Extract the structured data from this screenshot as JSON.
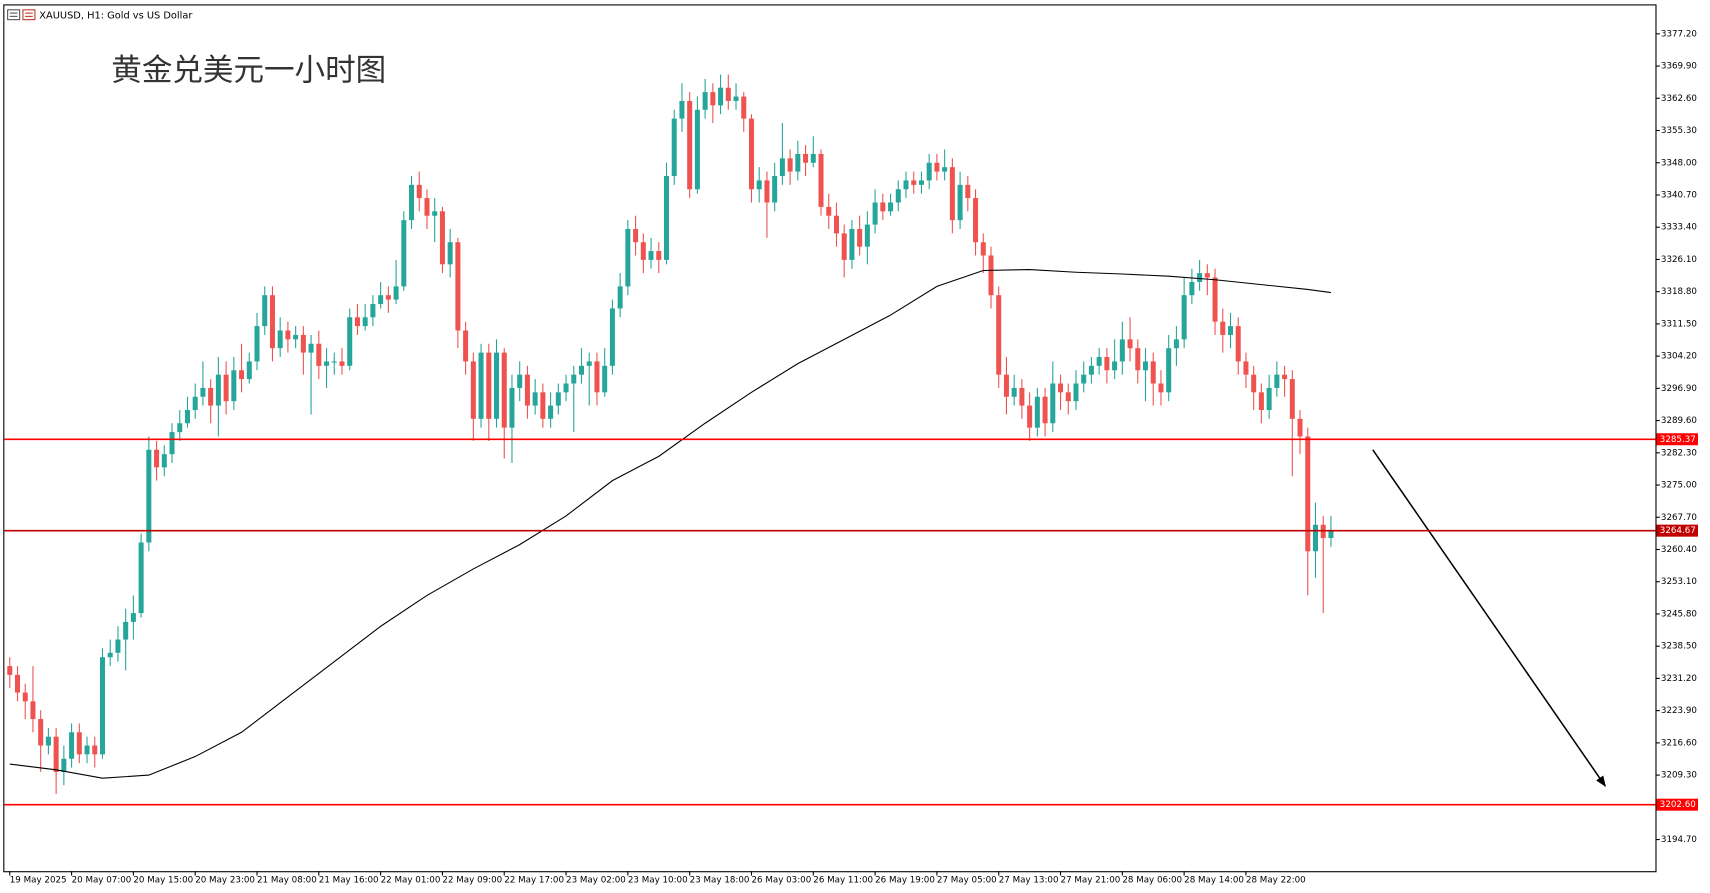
{
  "chart_data": {
    "type": "candlestick",
    "title": "XAUUSD, H1:  Gold vs US Dollar",
    "annotation": "黄金兑美元一小时图",
    "up_color": "#26a69a",
    "down_color": "#ef5350",
    "categories": [
      "19 May 2025",
      null,
      null,
      null,
      null,
      null,
      null,
      null,
      "20 May 07:00",
      null,
      null,
      null,
      null,
      null,
      null,
      null,
      "20 May 15:00",
      null,
      null,
      null,
      null,
      null,
      null,
      null,
      "20 May 23:00",
      null,
      null,
      null,
      null,
      null,
      null,
      null,
      "21 May 08:00",
      null,
      null,
      null,
      null,
      null,
      null,
      null,
      "21 May 16:00",
      null,
      null,
      null,
      null,
      null,
      null,
      null,
      "22 May 01:00",
      null,
      null,
      null,
      null,
      null,
      null,
      null,
      "22 May 09:00",
      null,
      null,
      null,
      null,
      null,
      null,
      null,
      "22 May 17:00",
      null,
      null,
      null,
      null,
      null,
      null,
      null,
      "23 May 02:00",
      null,
      null,
      null,
      null,
      null,
      null,
      null,
      "23 May 10:00",
      null,
      null,
      null,
      null,
      null,
      null,
      null,
      "23 May 18:00",
      null,
      null,
      null,
      null,
      null,
      null,
      null,
      "26 May 03:00",
      null,
      null,
      null,
      null,
      null,
      null,
      null,
      "26 May 11:00",
      null,
      null,
      null,
      null,
      null,
      null,
      null,
      "26 May 19:00",
      null,
      null,
      null,
      null,
      null,
      null,
      null,
      "27 May 05:00",
      null,
      null,
      null,
      null,
      null,
      null,
      null,
      "27 May 13:00",
      null,
      null,
      null,
      null,
      null,
      null,
      null,
      "27 May 21:00",
      null,
      null,
      null,
      null,
      null,
      null,
      null,
      "28 May 06:00",
      null,
      null,
      null,
      null,
      null,
      null,
      null,
      "28 May 14:00",
      null,
      null,
      null,
      null,
      null,
      null,
      null,
      "28 May 22:00",
      null,
      null,
      null,
      null,
      null,
      null,
      null,
      null,
      null,
      null,
      null
    ],
    "open": [
      3234,
      3232,
      3228,
      3226,
      3222,
      3216,
      3218,
      3210,
      3213,
      3219,
      3214,
      3216,
      3214,
      3236,
      3237,
      3240,
      3244,
      3246,
      3262,
      3283,
      3279,
      3282,
      3287,
      3289,
      3292,
      3295,
      3297,
      3293,
      3300,
      3294,
      3301,
      3299,
      3303,
      3311,
      3318,
      3306,
      3310,
      3308,
      3309,
      3305,
      3307,
      3302,
      3303,
      3303,
      3302,
      3313,
      3311,
      3313,
      3316,
      3318,
      3317,
      3320,
      3335,
      3343,
      3340,
      3336,
      3337,
      3325,
      3330,
      3310,
      3303,
      3290,
      3305,
      3290,
      3305,
      3288,
      3297,
      3300,
      3293,
      3296,
      3290,
      3293,
      3296,
      3298,
      3300,
      3302,
      3303,
      3296,
      3302,
      3315,
      3320,
      3333,
      3330,
      3326,
      3328,
      3326,
      3345,
      3358,
      3362,
      3342,
      3360,
      3364,
      3361,
      3365,
      3362,
      3363,
      3358,
      3342,
      3344,
      3339,
      3345,
      3349,
      3346,
      3350,
      3348,
      3350,
      3338,
      3336,
      3332,
      3326,
      3333,
      3329,
      3334,
      3339,
      3337,
      3339,
      3342,
      3344,
      3343,
      3344,
      3348,
      3346,
      3347,
      3335,
      3343,
      3340,
      3330,
      3327,
      3318,
      3300,
      3295,
      3297,
      3293,
      3288,
      3295,
      3289,
      3298,
      3296,
      3294,
      3298,
      3300,
      3302,
      3304,
      3301,
      3303,
      3308,
      3306,
      3301,
      3303,
      3298,
      3296,
      3306,
      3308,
      3318,
      3321,
      3323,
      3322,
      3312,
      3309,
      3311,
      3303,
      3300,
      3296,
      3292,
      3297,
      3300,
      3299,
      3290,
      3286,
      3260,
      3266,
      3263
    ],
    "high": [
      3236,
      3234,
      3230,
      3234,
      3224,
      3220,
      3220,
      3216,
      3221,
      3221,
      3218,
      3218,
      3238,
      3240,
      3243,
      3247,
      3250,
      3264,
      3286,
      3285,
      3284,
      3289,
      3292,
      3295,
      3298,
      3303,
      3299,
      3304,
      3303,
      3304,
      3307,
      3305,
      3314,
      3320,
      3320,
      3313,
      3312,
      3311,
      3311,
      3309,
      3310,
      3306,
      3305,
      3306,
      3315,
      3316,
      3316,
      3318,
      3321,
      3320,
      3326,
      3337,
      3345,
      3346,
      3342,
      3340,
      3338,
      3333,
      3331,
      3312,
      3305,
      3307,
      3307,
      3308,
      3306,
      3300,
      3303,
      3302,
      3299,
      3298,
      3296,
      3298,
      3300,
      3302,
      3306,
      3305,
      3305,
      3306,
      3317,
      3323,
      3335,
      3336,
      3332,
      3331,
      3330,
      3348,
      3360,
      3366,
      3364,
      3363,
      3367,
      3366,
      3368,
      3368,
      3366,
      3364,
      3359,
      3347,
      3346,
      3348,
      3357,
      3351,
      3353,
      3352,
      3354,
      3351,
      3341,
      3339,
      3334,
      3335,
      3336,
      3337,
      3342,
      3341,
      3341,
      3344,
      3346,
      3346,
      3346,
      3350,
      3350,
      3351,
      3349,
      3346,
      3345,
      3342,
      3332,
      3329,
      3320,
      3304,
      3300,
      3299,
      3296,
      3297,
      3297,
      3303,
      3300,
      3298,
      3301,
      3303,
      3304,
      3306,
      3306,
      3308,
      3312,
      3313,
      3308,
      3306,
      3305,
      3301,
      3309,
      3311,
      3322,
      3324,
      3326,
      3325,
      3324,
      3315,
      3314,
      3313,
      3305,
      3302,
      3298,
      3300,
      3303,
      3302,
      3301,
      3292,
      3288,
      3271,
      3268,
      3268
    ],
    "low": [
      3229,
      3226,
      3222,
      3219,
      3210,
      3214,
      3205,
      3207,
      3211,
      3212,
      3212,
      3211,
      3213,
      3234,
      3235,
      3233,
      3240,
      3245,
      3260,
      3276,
      3277,
      3280,
      3285,
      3288,
      3290,
      3293,
      3289,
      3286,
      3291,
      3292,
      3296,
      3298,
      3301,
      3309,
      3303,
      3304,
      3305,
      3306,
      3300,
      3291,
      3299,
      3297,
      3300,
      3300,
      3301,
      3309,
      3310,
      3311,
      3315,
      3314,
      3316,
      3319,
      3333,
      3337,
      3333,
      3330,
      3323,
      3322,
      3306,
      3300,
      3285,
      3288,
      3285,
      3288,
      3281,
      3280,
      3294,
      3290,
      3291,
      3288,
      3288,
      3291,
      3294,
      3287,
      3298,
      3293,
      3293,
      3295,
      3300,
      3313,
      3318,
      3327,
      3323,
      3324,
      3323,
      3325,
      3343,
      3355,
      3340,
      3341,
      3358,
      3357,
      3359,
      3360,
      3360,
      3355,
      3339,
      3339,
      3331,
      3337,
      3343,
      3343,
      3344,
      3345,
      3347,
      3336,
      3333,
      3329,
      3322,
      3324,
      3327,
      3325,
      3332,
      3335,
      3336,
      3337,
      3340,
      3341,
      3341,
      3342,
      3344,
      3344,
      3332,
      3333,
      3337,
      3327,
      3323,
      3315,
      3297,
      3291,
      3293,
      3290,
      3285,
      3286,
      3286,
      3287,
      3292,
      3291,
      3292,
      3296,
      3298,
      3300,
      3298,
      3299,
      3300,
      3303,
      3298,
      3294,
      3293,
      3293,
      3294,
      3302,
      3306,
      3316,
      3319,
      3318,
      3309,
      3305,
      3306,
      3300,
      3297,
      3292,
      3289,
      3290,
      3295,
      3295,
      3277,
      3282,
      3250,
      3254,
      3246,
      3261
    ],
    "close": [
      3232,
      3228,
      3226,
      3222,
      3216,
      3218,
      3210,
      3213,
      3219,
      3214,
      3216,
      3214,
      3236,
      3237,
      3240,
      3244,
      3246,
      3262,
      3283,
      3279,
      3282,
      3287,
      3289,
      3292,
      3295,
      3297,
      3293,
      3300,
      3294,
      3301,
      3299,
      3303,
      3311,
      3318,
      3306,
      3310,
      3308,
      3309,
      3305,
      3307,
      3302,
      3303,
      3303,
      3302,
      3313,
      3311,
      3313,
      3316,
      3318,
      3317,
      3320,
      3335,
      3343,
      3340,
      3336,
      3337,
      3325,
      3330,
      3310,
      3303,
      3290,
      3305,
      3290,
      3305,
      3288,
      3297,
      3300,
      3293,
      3296,
      3290,
      3293,
      3296,
      3298,
      3300,
      3302,
      3303,
      3296,
      3302,
      3315,
      3320,
      3333,
      3330,
      3326,
      3328,
      3326,
      3345,
      3358,
      3362,
      3342,
      3360,
      3364,
      3361,
      3365,
      3362,
      3363,
      3358,
      3342,
      3344,
      3339,
      3345,
      3349,
      3346,
      3350,
      3348,
      3350,
      3338,
      3336,
      3332,
      3326,
      3333,
      3329,
      3334,
      3339,
      3337,
      3339,
      3342,
      3344,
      3343,
      3344,
      3348,
      3346,
      3347,
      3335,
      3343,
      3340,
      3330,
      3327,
      3318,
      3300,
      3295,
      3297,
      3293,
      3288,
      3295,
      3289,
      3298,
      3296,
      3294,
      3298,
      3300,
      3302,
      3304,
      3301,
      3303,
      3308,
      3306,
      3301,
      3303,
      3298,
      3296,
      3306,
      3308,
      3318,
      3321,
      3323,
      3322,
      3312,
      3309,
      3311,
      3303,
      3300,
      3296,
      3292,
      3297,
      3300,
      3299,
      3290,
      3286,
      3260,
      3266,
      3263,
      3264.67
    ],
    "ma": {
      "color": "#000000",
      "x": [
        0,
        6,
        12,
        18,
        24,
        30,
        36,
        42,
        48,
        54,
        60,
        66,
        72,
        78,
        84,
        90,
        96,
        102,
        108,
        114,
        120,
        126,
        132,
        138,
        144,
        150,
        156,
        162,
        168,
        171
      ],
      "values": [
        3211.8,
        3210.5,
        3208.6,
        3209.3,
        3213.5,
        3219,
        3227,
        3235,
        3243,
        3250,
        3256,
        3261.5,
        3268,
        3276,
        3281.5,
        3289,
        3296,
        3302.5,
        3308,
        3313.5,
        3320,
        3323.6,
        3323.8,
        3323.2,
        3322.8,
        3322.3,
        3321.5,
        3320.4,
        3319.3,
        3318.6
      ]
    },
    "hlines": [
      3285.37,
      3264.67,
      {
        "value": 3202.6,
        "label": "3202.60"
      }
    ],
    "hline_colors": [
      "#ff0000",
      "#c00000",
      "#ff0000"
    ],
    "xlim": [
      -0.7,
      213
    ],
    "ylim": [
      3187.54,
      3383.63
    ],
    "yticks": [
      {
        "value": 3377.2,
        "label": "3377.20"
      },
      {
        "value": 3369.9,
        "label": "3369.90"
      },
      {
        "value": 3362.6,
        "label": "3362.60"
      },
      {
        "value": 3355.3,
        "label": "3355.30"
      },
      {
        "value": 3348,
        "label": "3348.00"
      },
      {
        "value": 3340.7,
        "label": "3340.70"
      },
      {
        "value": 3333.4,
        "label": "3333.40"
      },
      {
        "value": 3326.1,
        "label": "3326.10"
      },
      {
        "value": 3318.8,
        "label": "3318.80"
      },
      {
        "value": 3311.5,
        "label": "3311.50"
      },
      {
        "value": 3304.2,
        "label": "3304.20"
      },
      {
        "value": 3296.9,
        "label": "3296.90"
      },
      {
        "value": 3289.6,
        "label": "3289.60"
      },
      {
        "value": 3282.3,
        "label": "3282.30"
      },
      {
        "value": 3275,
        "label": "3275.00"
      },
      {
        "value": 3267.7,
        "label": "3267.70"
      },
      {
        "value": 3260.4,
        "label": "3260.40"
      },
      {
        "value": 3253.1,
        "label": "3253.10"
      },
      {
        "value": 3245.8,
        "label": "3245.80"
      },
      {
        "value": 3238.5,
        "label": "3238.50"
      },
      {
        "value": 3231.2,
        "label": "3231.20"
      },
      {
        "value": 3223.9,
        "label": "3223.90"
      },
      {
        "value": 3216.6,
        "label": "3216.60"
      },
      {
        "value": 3209.3,
        "label": "3209.30"
      },
      {
        "value": 3194.7,
        "label": "3194.70"
      }
    ]
  }
}
